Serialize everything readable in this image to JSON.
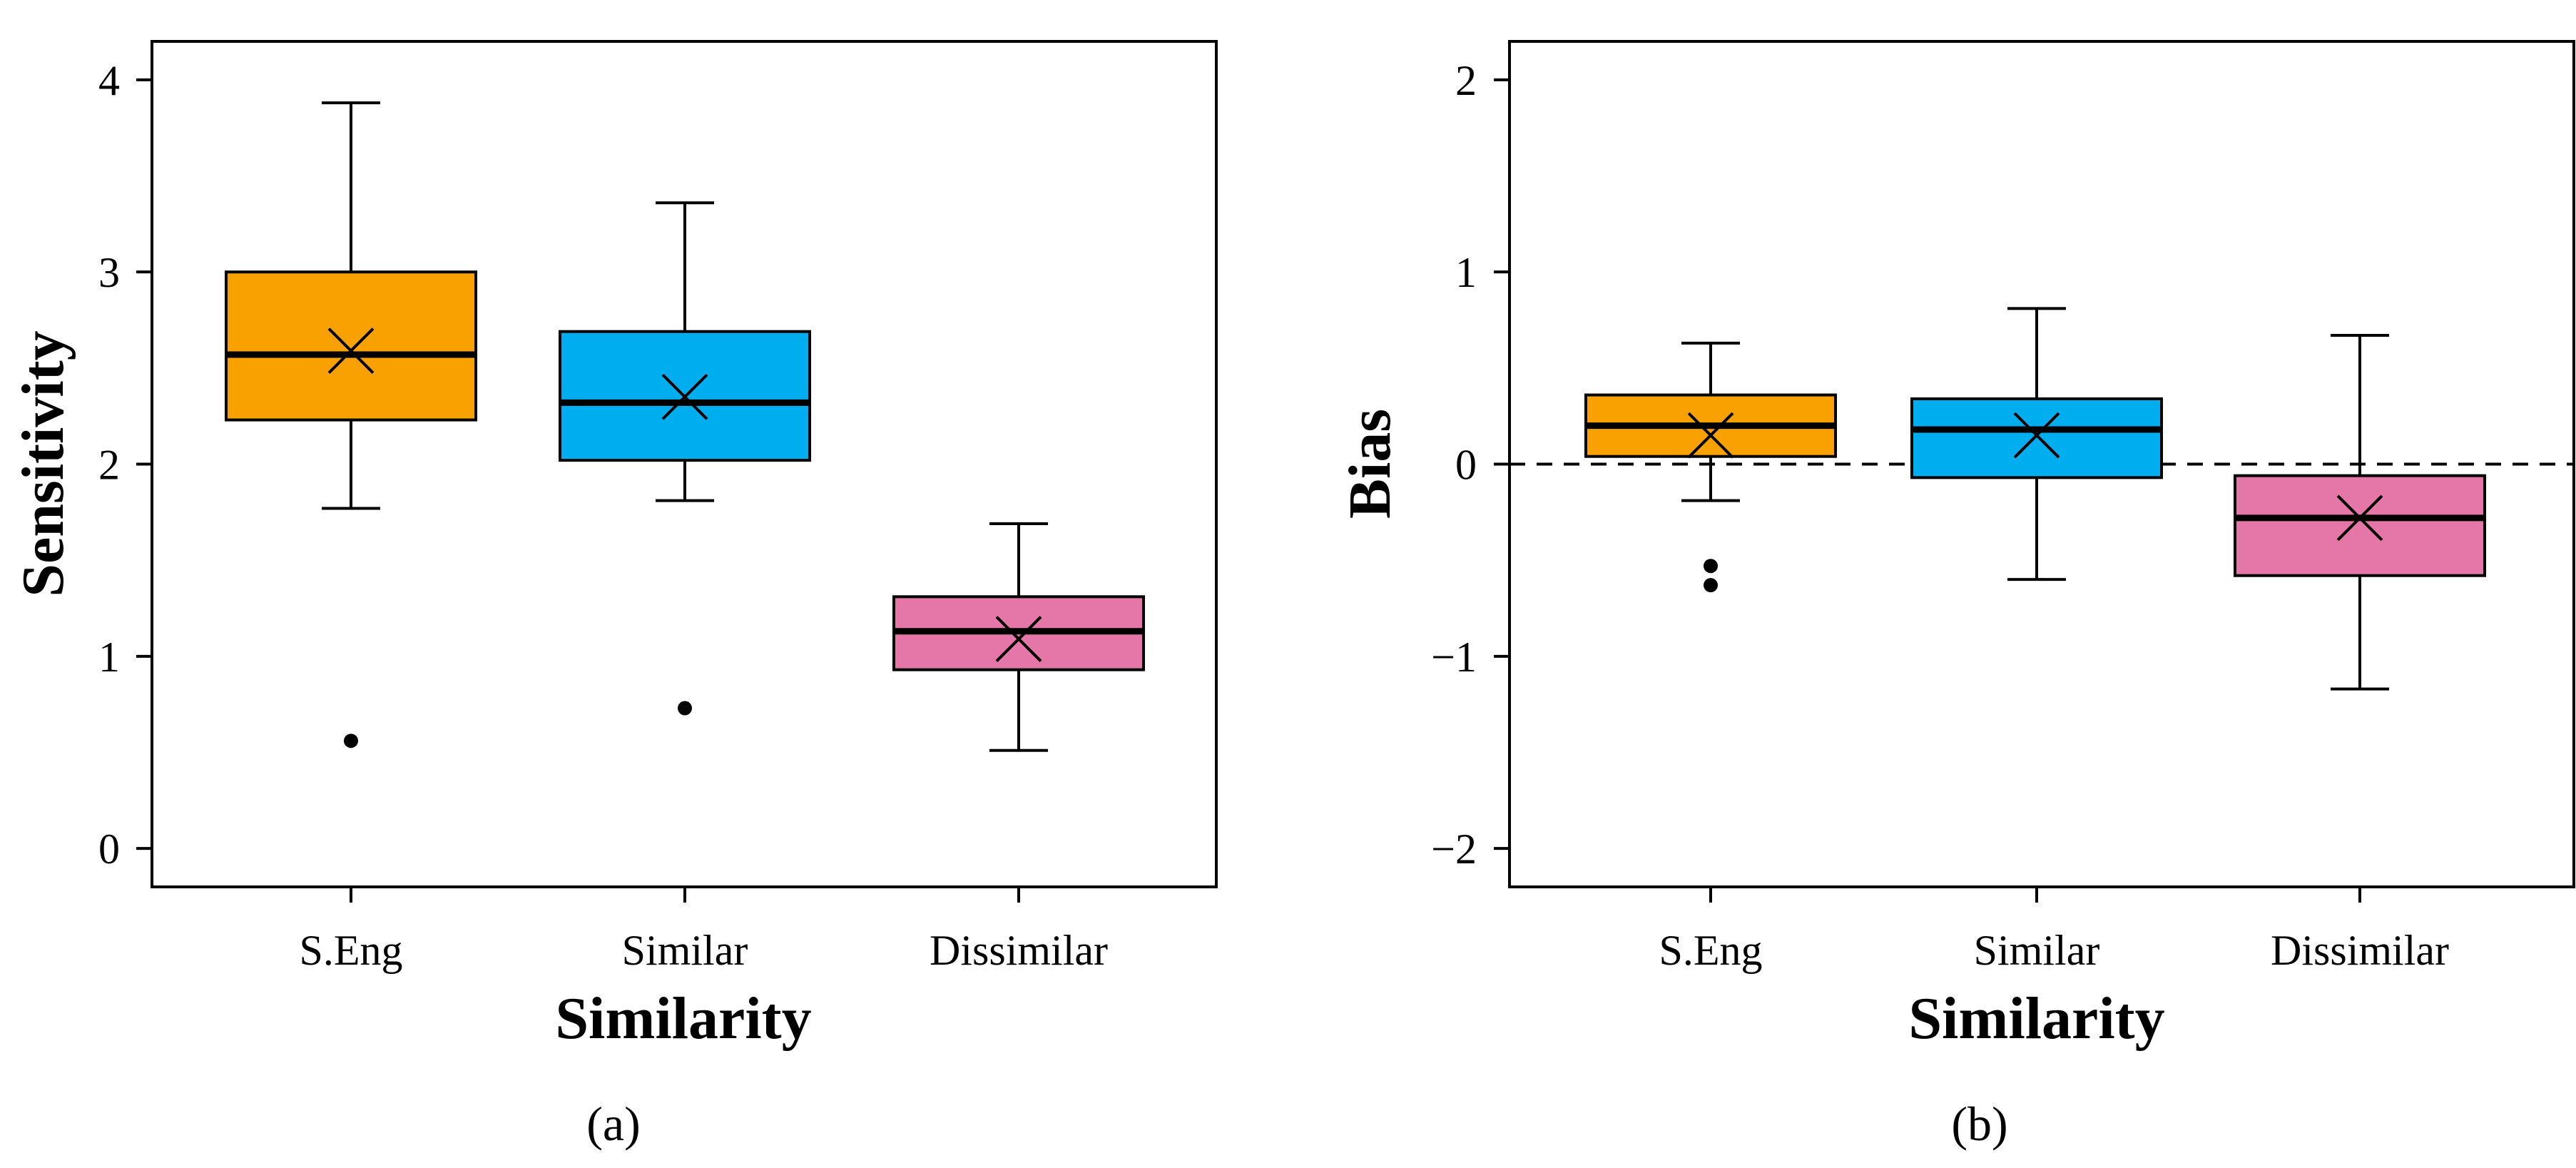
{
  "chart_data": [
    {
      "type": "box",
      "panel_label": "(a)",
      "title": "",
      "xlabel": "Similarity",
      "ylabel": "Sensitivity",
      "categories": [
        "S.Eng",
        "Similar",
        "Dissimilar"
      ],
      "ylim": [
        -0.2,
        4.2
      ],
      "yticks": [
        0,
        1,
        2,
        3,
        4
      ],
      "ytick_labels": [
        "0",
        "1",
        "2",
        "3",
        "4"
      ],
      "reference_line": null,
      "boxes": [
        {
          "category": "S.Eng",
          "color": "#F8A100",
          "whisker_low": 1.77,
          "q1": 2.23,
          "median": 2.57,
          "q3": 3.0,
          "whisker_high": 3.88,
          "mean": 2.59,
          "outliers": [
            0.56
          ]
        },
        {
          "category": "Similar",
          "color": "#00AEEF",
          "whisker_low": 1.81,
          "q1": 2.02,
          "median": 2.32,
          "q3": 2.69,
          "whisker_high": 3.36,
          "mean": 2.35,
          "outliers": [
            0.73
          ]
        },
        {
          "category": "Dissimilar",
          "color": "#E477A8",
          "whisker_low": 0.51,
          "q1": 0.93,
          "median": 1.13,
          "q3": 1.31,
          "whisker_high": 1.69,
          "mean": 1.09,
          "outliers": []
        }
      ]
    },
    {
      "type": "box",
      "panel_label": "(b)",
      "title": "",
      "xlabel": "Similarity",
      "ylabel": "Bias",
      "categories": [
        "S.Eng",
        "Similar",
        "Dissimilar"
      ],
      "ylim": [
        -2.2,
        2.2
      ],
      "yticks": [
        -2,
        -1,
        0,
        1,
        2
      ],
      "ytick_labels": [
        "−2",
        "−1",
        "0",
        "1",
        "2"
      ],
      "reference_line": {
        "y": 0,
        "style": "dashed"
      },
      "boxes": [
        {
          "category": "S.Eng",
          "color": "#F8A100",
          "whisker_low": -0.19,
          "q1": 0.04,
          "median": 0.2,
          "q3": 0.36,
          "whisker_high": 0.63,
          "mean": 0.15,
          "outliers": [
            -0.53,
            -0.63
          ]
        },
        {
          "category": "Similar",
          "color": "#00AEEF",
          "whisker_low": -0.6,
          "q1": -0.07,
          "median": 0.18,
          "q3": 0.34,
          "whisker_high": 0.81,
          "mean": 0.15,
          "outliers": []
        },
        {
          "category": "Dissimilar",
          "color": "#E477A8",
          "whisker_low": -1.17,
          "q1": -0.58,
          "median": -0.28,
          "q3": -0.06,
          "whisker_high": 0.67,
          "mean": -0.28,
          "outliers": []
        }
      ]
    }
  ]
}
